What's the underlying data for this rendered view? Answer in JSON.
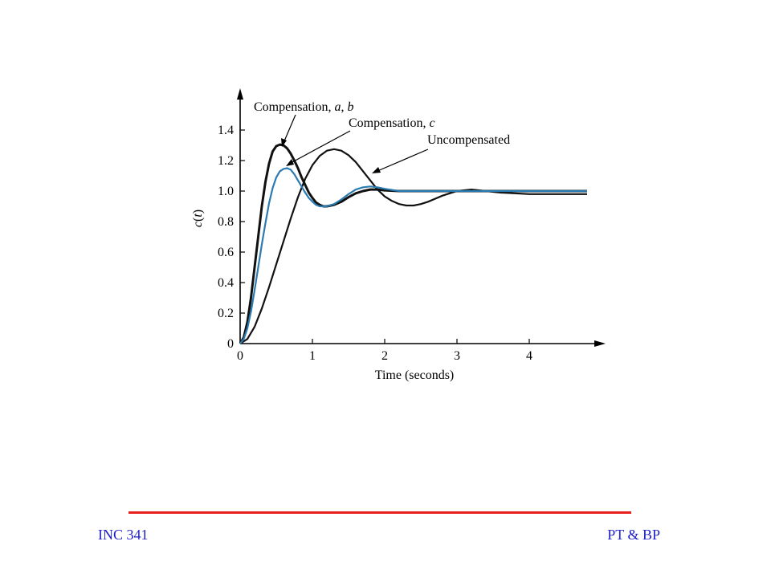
{
  "chart_data": {
    "type": "line",
    "xlabel": "Time (seconds)",
    "ylabel": "c(t)",
    "xlim": [
      0,
      5
    ],
    "ylim": [
      0,
      1.5
    ],
    "x_ticks": [
      "0",
      "1",
      "2",
      "3",
      "4"
    ],
    "y_ticks": [
      "0",
      "0.2",
      "0.4",
      "0.6",
      "0.8",
      "1.0",
      "1.2",
      "1.4"
    ],
    "annotations": [
      {
        "text": "Compensation, a, b",
        "target": "comp_ab"
      },
      {
        "text": "Compensation, c",
        "target": "comp_c"
      },
      {
        "text": "Uncompensated",
        "target": "uncomp"
      }
    ],
    "series": [
      {
        "id": "uncomp",
        "color": "#111111",
        "x": [
          0,
          0.1,
          0.2,
          0.3,
          0.4,
          0.5,
          0.6,
          0.7,
          0.8,
          0.9,
          1.0,
          1.1,
          1.2,
          1.3,
          1.4,
          1.5,
          1.6,
          1.7,
          1.8,
          1.9,
          2.0,
          2.1,
          2.2,
          2.3,
          2.4,
          2.5,
          2.6,
          2.7,
          2.8,
          2.9,
          3.0,
          3.2,
          3.4,
          3.6,
          3.8,
          4.0,
          4.2,
          4.4,
          4.6,
          4.8
        ],
        "y": [
          0,
          0.03,
          0.11,
          0.23,
          0.37,
          0.52,
          0.67,
          0.82,
          0.96,
          1.08,
          1.17,
          1.23,
          1.265,
          1.275,
          1.265,
          1.235,
          1.19,
          1.13,
          1.07,
          1.01,
          0.965,
          0.935,
          0.915,
          0.905,
          0.905,
          0.915,
          0.93,
          0.95,
          0.97,
          0.985,
          1.0,
          1.01,
          1.0,
          0.99,
          0.985,
          0.98,
          0.98,
          0.98,
          0.98,
          0.98
        ]
      },
      {
        "id": "comp_ab",
        "color": "#111111",
        "x": [
          0,
          0.05,
          0.1,
          0.15,
          0.2,
          0.25,
          0.3,
          0.35,
          0.4,
          0.45,
          0.5,
          0.55,
          0.6,
          0.65,
          0.7,
          0.75,
          0.8,
          0.85,
          0.9,
          0.95,
          1.0,
          1.05,
          1.1,
          1.15,
          1.2,
          1.3,
          1.4,
          1.5,
          1.6,
          1.7,
          1.8,
          1.9,
          2.0,
          2.2,
          2.4,
          2.6,
          2.8,
          3.0,
          3.5,
          4.0,
          4.5,
          4.8
        ],
        "y": [
          0,
          0.04,
          0.14,
          0.3,
          0.5,
          0.7,
          0.9,
          1.06,
          1.18,
          1.26,
          1.295,
          1.305,
          1.3,
          1.28,
          1.245,
          1.2,
          1.15,
          1.09,
          1.04,
          0.99,
          0.955,
          0.925,
          0.91,
          0.9,
          0.9,
          0.91,
          0.93,
          0.96,
          0.985,
          1.0,
          1.01,
          1.01,
          1.005,
          1.0,
          1.0,
          1.0,
          1.0,
          1.0,
          1.0,
          1.0,
          1.0,
          1.0
        ]
      },
      {
        "id": "comp_c",
        "color": "#2b7bb0",
        "x": [
          0,
          0.05,
          0.1,
          0.15,
          0.2,
          0.25,
          0.3,
          0.35,
          0.4,
          0.45,
          0.5,
          0.55,
          0.6,
          0.65,
          0.7,
          0.75,
          0.8,
          0.85,
          0.9,
          0.95,
          1.0,
          1.05,
          1.1,
          1.15,
          1.2,
          1.3,
          1.4,
          1.5,
          1.6,
          1.7,
          1.8,
          1.9,
          2.0,
          2.2,
          2.4,
          2.6,
          2.8,
          3.0,
          3.5,
          4.0,
          4.5,
          4.8
        ],
        "y": [
          0,
          0.03,
          0.1,
          0.21,
          0.35,
          0.5,
          0.65,
          0.79,
          0.92,
          1.02,
          1.09,
          1.13,
          1.145,
          1.15,
          1.14,
          1.11,
          1.07,
          1.03,
          0.99,
          0.955,
          0.93,
          0.91,
          0.9,
          0.9,
          0.9,
          0.915,
          0.945,
          0.98,
          1.01,
          1.025,
          1.03,
          1.025,
          1.015,
          1.0,
          1.0,
          1.0,
          1.0,
          1.0,
          1.0,
          1.0,
          1.0,
          1.0
        ]
      }
    ]
  },
  "footer": {
    "left_text": "INC 341",
    "right_text": "PT & BP",
    "rule_color": "#e8201c"
  }
}
